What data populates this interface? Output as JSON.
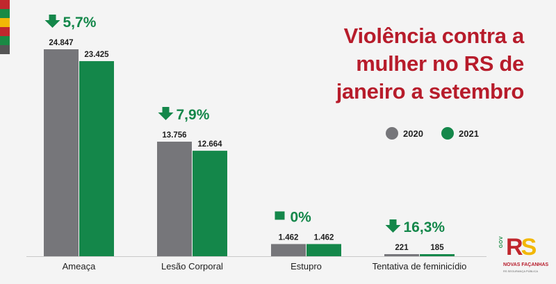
{
  "title": "Violência contra a\nmulher no RS de\njaneiro a setembro",
  "flag_colors": [
    "#c0272d",
    "#1a8a44",
    "#f2b705",
    "#c0272d",
    "#1a8a44",
    "#555555"
  ],
  "colors": {
    "series_2020": "#76767a",
    "series_2021": "#14874a",
    "title": "#b71c2b",
    "change_text": "#14874a"
  },
  "chart_data": {
    "type": "bar",
    "categories": [
      "Ameaça",
      "Lesão Corporal",
      "Estupro",
      "Tentativa de feminicídio"
    ],
    "series": [
      {
        "name": "2020",
        "values": [
          24847,
          13756,
          1462,
          221
        ],
        "labels": [
          "24.847",
          "13.756",
          "1.462",
          "221"
        ]
      },
      {
        "name": "2021",
        "values": [
          23425,
          12664,
          1462,
          185
        ],
        "labels": [
          "23.425",
          "12.664",
          "1.462",
          "185"
        ]
      }
    ],
    "changes": [
      {
        "label": "5,7%",
        "direction": "down"
      },
      {
        "label": "7,9%",
        "direction": "down"
      },
      {
        "label": "0%",
        "direction": "flat"
      },
      {
        "label": "16,3%",
        "direction": "down"
      }
    ],
    "ylim": [
      0,
      24847
    ],
    "legend_position": "top-right",
    "grid": false
  },
  "logo": {
    "mark_r": "R",
    "mark_s": "S",
    "vertical_text": "GOV",
    "brand": "NOVAS FAÇANHAS",
    "subtitle": "RS SEGURANÇA PÚBLICA"
  }
}
